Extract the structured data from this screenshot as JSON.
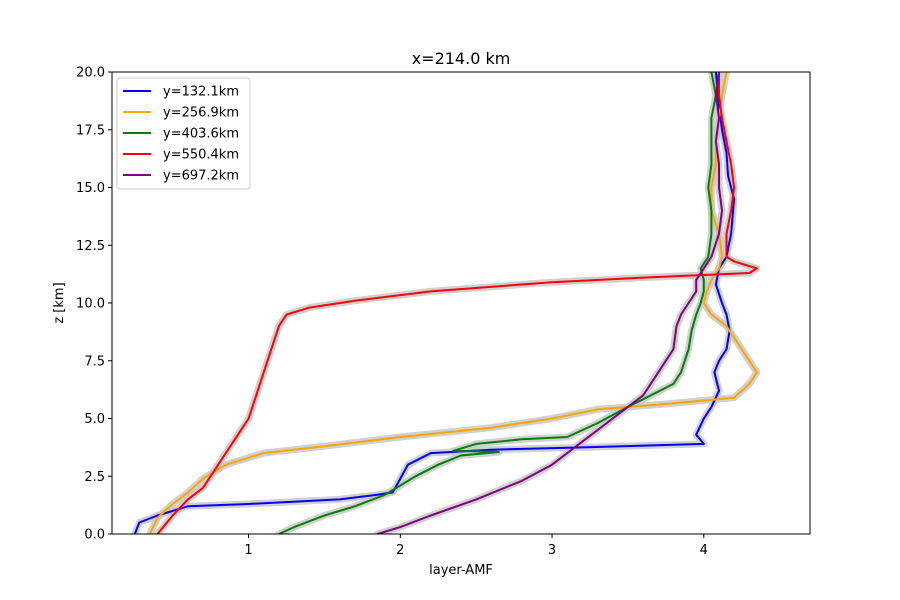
{
  "chart_data": {
    "type": "line",
    "title": "x=214.0 km",
    "xlabel": "layer-AMF",
    "ylabel": "z [km]",
    "xlim": [
      0.1,
      4.7
    ],
    "ylim": [
      0,
      20
    ],
    "xticks": [
      1,
      2,
      3,
      4
    ],
    "yticks": [
      0.0,
      2.5,
      5.0,
      7.5,
      10.0,
      12.5,
      15.0,
      17.5,
      20.0
    ],
    "ytick_labels": [
      "0.0",
      "2.5",
      "5.0",
      "7.5",
      "10.0",
      "12.5",
      "15.0",
      "17.5",
      "20.0"
    ],
    "xtick_labels": [
      "1",
      "2",
      "3",
      "4"
    ],
    "grid": false,
    "legend_position": "upper-left",
    "uncertainty_band_color": "#c8c8c8",
    "series": [
      {
        "name": "y=132.1km",
        "color": "#0000ff",
        "points": [
          [
            0.25,
            0
          ],
          [
            0.28,
            0.5
          ],
          [
            0.4,
            0.8
          ],
          [
            0.6,
            1.2
          ],
          [
            1.0,
            1.3
          ],
          [
            1.6,
            1.5
          ],
          [
            1.85,
            1.7
          ],
          [
            1.95,
            1.8
          ],
          [
            2.0,
            2.4
          ],
          [
            2.05,
            3.0
          ],
          [
            2.2,
            3.5
          ],
          [
            2.6,
            3.65
          ],
          [
            3.2,
            3.75
          ],
          [
            4.0,
            3.9
          ],
          [
            3.95,
            4.3
          ],
          [
            4.0,
            5.0
          ],
          [
            4.05,
            5.5
          ],
          [
            4.1,
            6.2
          ],
          [
            4.07,
            7.0
          ],
          [
            4.1,
            7.5
          ],
          [
            4.15,
            8.0
          ],
          [
            4.17,
            8.8
          ],
          [
            4.15,
            9.5
          ],
          [
            4.12,
            10.0
          ],
          [
            4.08,
            10.8
          ],
          [
            4.1,
            11.5
          ],
          [
            4.15,
            12.0
          ],
          [
            4.18,
            13.0
          ],
          [
            4.2,
            14.5
          ],
          [
            4.16,
            15.5
          ],
          [
            4.15,
            16.5
          ],
          [
            4.12,
            17.5
          ],
          [
            4.1,
            18.5
          ],
          [
            4.08,
            20.0
          ]
        ]
      },
      {
        "name": "y=256.9km",
        "color": "#ffa500",
        "points": [
          [
            0.35,
            0
          ],
          [
            0.4,
            0.7
          ],
          [
            0.5,
            1.3
          ],
          [
            0.6,
            1.8
          ],
          [
            0.7,
            2.4
          ],
          [
            0.85,
            3.0
          ],
          [
            1.1,
            3.5
          ],
          [
            1.5,
            3.8
          ],
          [
            2.0,
            4.2
          ],
          [
            2.6,
            4.6
          ],
          [
            3.0,
            5.0
          ],
          [
            3.3,
            5.4
          ],
          [
            3.7,
            5.6
          ],
          [
            4.2,
            5.9
          ],
          [
            4.3,
            6.5
          ],
          [
            4.35,
            7.0
          ],
          [
            4.3,
            7.5
          ],
          [
            4.25,
            8.0
          ],
          [
            4.2,
            8.5
          ],
          [
            4.15,
            9.0
          ],
          [
            4.05,
            9.5
          ],
          [
            4.0,
            10.0
          ],
          [
            4.02,
            10.5
          ],
          [
            4.05,
            11.0
          ],
          [
            4.1,
            11.5
          ],
          [
            4.12,
            12.0
          ],
          [
            4.1,
            13.0
          ],
          [
            4.05,
            14.0
          ],
          [
            4.05,
            15.0
          ],
          [
            4.08,
            16.0
          ],
          [
            4.08,
            17.0
          ],
          [
            4.1,
            18.0
          ],
          [
            4.12,
            19.0
          ],
          [
            4.15,
            20.0
          ]
        ]
      },
      {
        "name": "y=403.6km",
        "color": "#008000",
        "points": [
          [
            1.2,
            0
          ],
          [
            1.3,
            0.3
          ],
          [
            1.5,
            0.8
          ],
          [
            1.7,
            1.2
          ],
          [
            1.9,
            1.7
          ],
          [
            2.0,
            2.1
          ],
          [
            2.1,
            2.5
          ],
          [
            2.25,
            3.0
          ],
          [
            2.4,
            3.4
          ],
          [
            2.65,
            3.55
          ],
          [
            2.35,
            3.6
          ],
          [
            2.5,
            3.9
          ],
          [
            2.8,
            4.1
          ],
          [
            3.1,
            4.2
          ],
          [
            3.3,
            4.8
          ],
          [
            3.5,
            5.5
          ],
          [
            3.65,
            6.0
          ],
          [
            3.8,
            6.5
          ],
          [
            3.85,
            7.0
          ],
          [
            3.9,
            8.0
          ],
          [
            3.92,
            8.8
          ],
          [
            3.95,
            9.5
          ],
          [
            3.98,
            10.0
          ],
          [
            4.0,
            10.5
          ],
          [
            4.0,
            11.0
          ],
          [
            3.98,
            11.5
          ],
          [
            4.03,
            12.0
          ],
          [
            4.05,
            13.0
          ],
          [
            4.05,
            14.0
          ],
          [
            4.03,
            15.0
          ],
          [
            4.05,
            16.0
          ],
          [
            4.05,
            17.0
          ],
          [
            4.05,
            18.0
          ],
          [
            4.08,
            19.0
          ],
          [
            4.05,
            20.0
          ]
        ]
      },
      {
        "name": "y=550.4km",
        "color": "#ff0000",
        "points": [
          [
            0.4,
            0
          ],
          [
            0.5,
            0.8
          ],
          [
            0.6,
            1.5
          ],
          [
            0.7,
            2.0
          ],
          [
            0.8,
            3.0
          ],
          [
            0.9,
            4.0
          ],
          [
            1.0,
            5.0
          ],
          [
            1.05,
            6.0
          ],
          [
            1.1,
            7.0
          ],
          [
            1.15,
            8.0
          ],
          [
            1.2,
            9.0
          ],
          [
            1.25,
            9.5
          ],
          [
            1.4,
            9.8
          ],
          [
            1.7,
            10.1
          ],
          [
            2.2,
            10.5
          ],
          [
            3.0,
            10.9
          ],
          [
            3.6,
            11.1
          ],
          [
            4.3,
            11.3
          ],
          [
            4.35,
            11.5
          ],
          [
            4.2,
            11.8
          ],
          [
            4.15,
            12.0
          ],
          [
            4.15,
            13.0
          ],
          [
            4.18,
            14.0
          ],
          [
            4.2,
            15.0
          ],
          [
            4.18,
            16.0
          ],
          [
            4.15,
            17.0
          ],
          [
            4.12,
            18.0
          ],
          [
            4.1,
            19.0
          ],
          [
            4.1,
            20.0
          ]
        ]
      },
      {
        "name": "y=697.2km",
        "color": "#800080",
        "points": [
          [
            1.85,
            0
          ],
          [
            2.0,
            0.3
          ],
          [
            2.2,
            0.8
          ],
          [
            2.5,
            1.5
          ],
          [
            2.8,
            2.3
          ],
          [
            3.0,
            3.0
          ],
          [
            3.1,
            3.5
          ],
          [
            3.2,
            4.0
          ],
          [
            3.3,
            4.5
          ],
          [
            3.4,
            5.0
          ],
          [
            3.5,
            5.5
          ],
          [
            3.6,
            6.0
          ],
          [
            3.65,
            6.5
          ],
          [
            3.7,
            7.0
          ],
          [
            3.75,
            7.5
          ],
          [
            3.8,
            8.0
          ],
          [
            3.82,
            9.0
          ],
          [
            3.85,
            9.5
          ],
          [
            3.9,
            10.0
          ],
          [
            3.95,
            10.5
          ],
          [
            3.95,
            11.0
          ],
          [
            4.0,
            11.5
          ],
          [
            4.05,
            12.0
          ],
          [
            4.1,
            13.0
          ],
          [
            4.12,
            14.0
          ],
          [
            4.1,
            15.0
          ],
          [
            4.1,
            16.0
          ],
          [
            4.08,
            17.0
          ],
          [
            4.1,
            18.0
          ],
          [
            4.08,
            19.0
          ],
          [
            4.1,
            20.0
          ]
        ]
      }
    ]
  }
}
